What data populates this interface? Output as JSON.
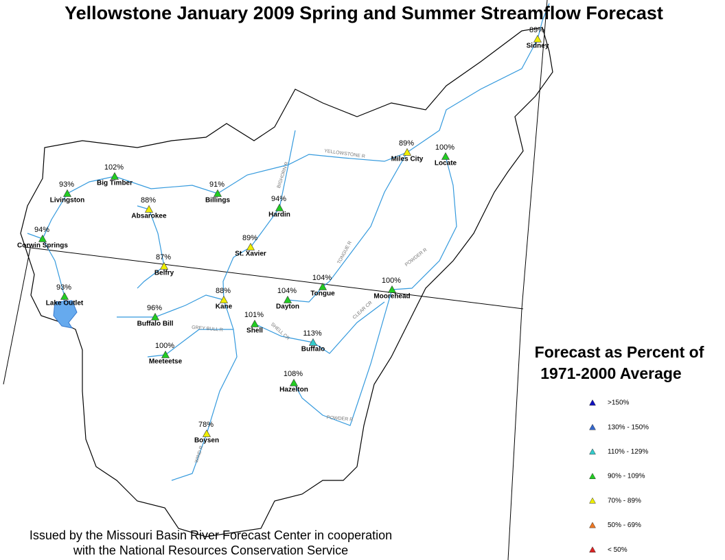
{
  "title": "Yellowstone January 2009 Spring and Summer Streamflow Forecast",
  "stations": [
    {
      "name": "Sidney",
      "forecast": "89%",
      "color": "#eeee00"
    },
    {
      "name": "Miles City",
      "forecast": "89%",
      "color": "#eeee00"
    },
    {
      "name": "Locate",
      "forecast": "100%",
      "color": "#22cc22"
    },
    {
      "name": "Big Timber",
      "forecast": "102%",
      "color": "#22cc22"
    },
    {
      "name": "Livingston",
      "forecast": "93%",
      "color": "#22cc22"
    },
    {
      "name": "Billings",
      "forecast": "91%",
      "color": "#22cc22"
    },
    {
      "name": "Absarokee",
      "forecast": "88%",
      "color": "#eeee00"
    },
    {
      "name": "Hardin",
      "forecast": "94%",
      "color": "#22cc22"
    },
    {
      "name": "Corwin Springs",
      "forecast": "94%",
      "color": "#22cc22"
    },
    {
      "name": "St. Xavier",
      "forecast": "89%",
      "color": "#eeee00"
    },
    {
      "name": "Belfry",
      "forecast": "87%",
      "color": "#eeee00"
    },
    {
      "name": "Lake Outlet",
      "forecast": "93%",
      "color": "#22cc22"
    },
    {
      "name": "Kane",
      "forecast": "88%",
      "color": "#eeee00"
    },
    {
      "name": "Dayton",
      "forecast": "104%",
      "color": "#22cc22"
    },
    {
      "name": "Tongue",
      "forecast": "104%",
      "color": "#22cc22"
    },
    {
      "name": "Moorehead",
      "forecast": "100%",
      "color": "#22cc22"
    },
    {
      "name": "Buffalo Bill",
      "forecast": "96%",
      "color": "#22cc22"
    },
    {
      "name": "Shell",
      "forecast": "101%",
      "color": "#22cc22"
    },
    {
      "name": "Buffalo",
      "forecast": "113%",
      "color": "#33cccc"
    },
    {
      "name": "Meeteetse",
      "forecast": "100%",
      "color": "#22cc22"
    },
    {
      "name": "Hazelton",
      "forecast": "108%",
      "color": "#22cc22"
    },
    {
      "name": "Boysen",
      "forecast": "78%",
      "color": "#eeee00"
    }
  ],
  "river_labels": [
    "YELLOWSTONE R",
    "BIGHORN R",
    "TONGUE R",
    "POWDER R",
    "CLEAR CR",
    "SHELL CR",
    "GREY BULL R",
    "POWDER R",
    "WIND R"
  ],
  "legend": {
    "title": [
      "Forecast as Percent of",
      "1971-2000 Average"
    ],
    "items": [
      {
        "label": ">150%",
        "color": "#1010c0"
      },
      {
        "label": "130% - 150%",
        "color": "#3366cc"
      },
      {
        "label": "110% - 129%",
        "color": "#33cccc"
      },
      {
        "label": "90% - 109%",
        "color": "#22cc22"
      },
      {
        "label": "70% - 89%",
        "color": "#eeee00"
      },
      {
        "label": "50% - 69%",
        "color": "#ee7722"
      },
      {
        "label": "< 50%",
        "color": "#dd2222"
      }
    ]
  },
  "footer": [
    "Issued by the Missouri Basin River Forecast Center in cooperation",
    "with the National Resources Conservation Service"
  ]
}
